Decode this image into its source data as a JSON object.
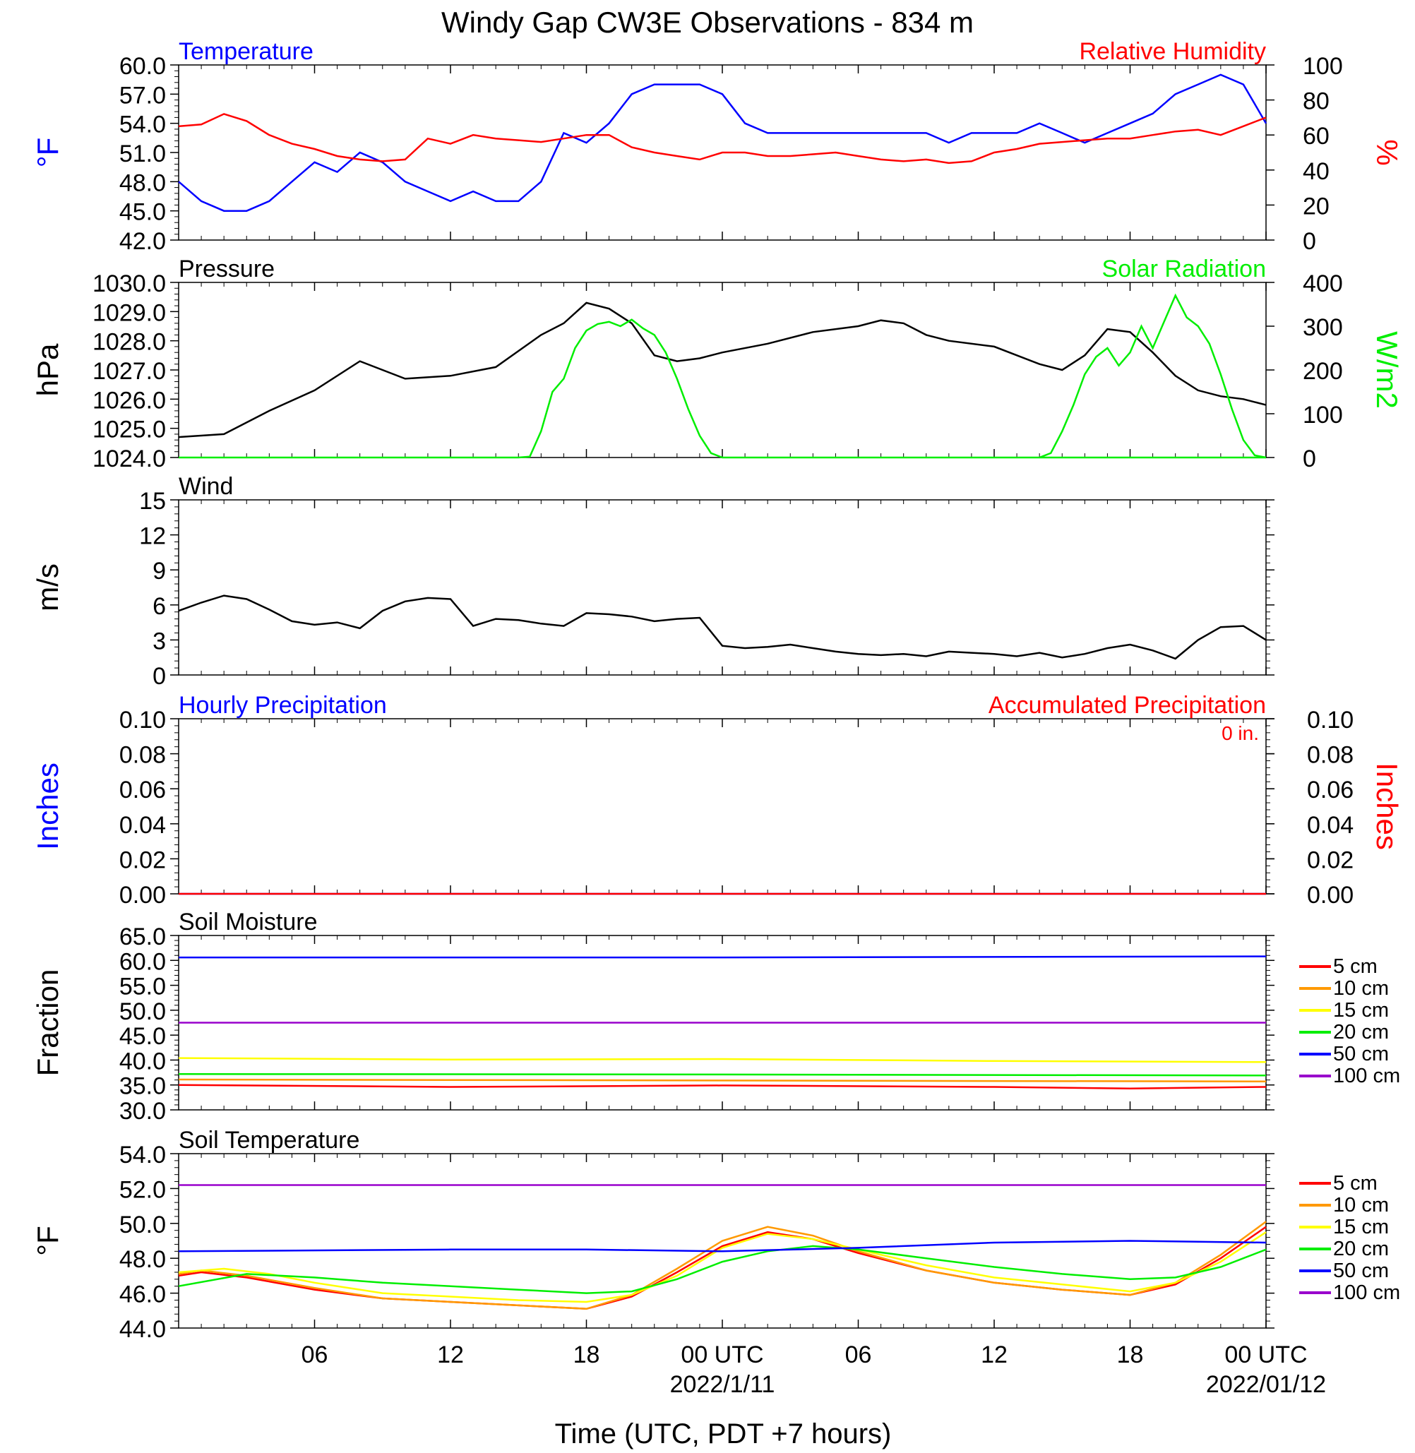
{
  "page": {
    "title": "Windy Gap CW3E Observations - 834 m",
    "xlabel": "Time (UTC, PDT +7 hours)",
    "x_ticks": [
      {
        "hour": 6,
        "label": "06"
      },
      {
        "hour": 12,
        "label": "12"
      },
      {
        "hour": 18,
        "label": "18"
      },
      {
        "hour": 24,
        "label": "00 UTC",
        "sublabel": "2022/1/11"
      },
      {
        "hour": 30,
        "label": "06"
      },
      {
        "hour": 36,
        "label": "12"
      },
      {
        "hour": 42,
        "label": "18"
      },
      {
        "hour": 48,
        "label": "00 UTC",
        "sublabel": "2022/01/12"
      }
    ]
  },
  "colors": {
    "blue": "#0000ff",
    "red": "#ff0000",
    "green": "#00ee00",
    "black": "#000000",
    "orange": "#ff9900",
    "yellow": "#ffff00",
    "purple": "#9900cc"
  },
  "chart_data": [
    {
      "id": "temperature",
      "type": "line",
      "title_left": "Temperature",
      "title_right": "Relative Humidity",
      "ylabel": "°F",
      "ylabel_right": "%",
      "ylim": [
        42,
        60
      ],
      "ylim_right": [
        0,
        100
      ],
      "yticks": [
        "42.0",
        "45.0",
        "48.0",
        "51.0",
        "54.0",
        "57.0",
        "60.0"
      ],
      "yticks_right": [
        "0",
        "20",
        "40",
        "60",
        "80",
        "100"
      ],
      "series": [
        {
          "name": "Temperature",
          "color": "#0000ff",
          "axis": "left",
          "x": [
            0,
            1,
            2,
            3,
            4,
            5,
            6,
            7,
            8,
            9,
            10,
            11,
            12,
            13,
            14,
            15,
            16,
            17,
            18,
            19,
            20,
            21,
            22,
            23,
            24,
            25,
            26,
            27,
            28,
            29,
            30,
            31,
            32,
            33,
            34,
            35,
            36,
            37,
            38,
            39,
            40,
            41,
            42,
            43,
            44,
            45,
            46,
            47,
            48
          ],
          "y": [
            48,
            46,
            45,
            45,
            46,
            48,
            50,
            49,
            51,
            50,
            48,
            47,
            46,
            47,
            46,
            46,
            48,
            53,
            52,
            54,
            57,
            58,
            58,
            58,
            57,
            54,
            53,
            53,
            53,
            53,
            53,
            53,
            53,
            53,
            52,
            53,
            53,
            53,
            54,
            53,
            52,
            53,
            54,
            55,
            57,
            58,
            59,
            58,
            54
          ]
        },
        {
          "name": "Relative Humidity",
          "color": "#ff0000",
          "axis": "right",
          "x": [
            0,
            1,
            2,
            3,
            4,
            5,
            6,
            7,
            8,
            9,
            10,
            11,
            12,
            13,
            14,
            15,
            16,
            17,
            18,
            19,
            20,
            21,
            22,
            23,
            24,
            25,
            26,
            27,
            28,
            29,
            30,
            31,
            32,
            33,
            34,
            35,
            36,
            37,
            38,
            39,
            40,
            41,
            42,
            43,
            44,
            45,
            46,
            47,
            48
          ],
          "y": [
            65,
            66,
            72,
            68,
            60,
            55,
            52,
            48,
            46,
            45,
            46,
            58,
            55,
            60,
            58,
            57,
            56,
            58,
            60,
            60,
            53,
            50,
            48,
            46,
            50,
            50,
            48,
            48,
            49,
            50,
            48,
            46,
            45,
            46,
            44,
            45,
            50,
            52,
            55,
            56,
            57,
            58,
            58,
            60,
            62,
            63,
            60,
            65,
            70
          ]
        }
      ]
    },
    {
      "id": "pressure",
      "type": "line",
      "title_left": "Pressure",
      "title_right": "Solar Radiation",
      "ylabel": "hPa",
      "ylabel_right": "W/m2",
      "ylim": [
        1024,
        1030
      ],
      "ylim_right": [
        0,
        400
      ],
      "yticks": [
        "1024.0",
        "1025.0",
        "1026.0",
        "1027.0",
        "1028.0",
        "1029.0",
        "1030.0"
      ],
      "yticks_right": [
        "0",
        "100",
        "200",
        "300",
        "400"
      ],
      "series": [
        {
          "name": "Pressure",
          "color": "#000000",
          "axis": "left",
          "x": [
            0,
            2,
            4,
            6,
            8,
            10,
            12,
            14,
            16,
            17,
            18,
            19,
            20,
            21,
            22,
            23,
            24,
            26,
            28,
            30,
            31,
            32,
            33,
            34,
            36,
            38,
            39,
            40,
            41,
            42,
            43,
            44,
            45,
            46,
            47,
            48
          ],
          "y": [
            1024.7,
            1024.8,
            1025.6,
            1026.3,
            1027.3,
            1026.7,
            1026.8,
            1027.1,
            1028.2,
            1028.6,
            1029.3,
            1029.1,
            1028.6,
            1027.5,
            1027.3,
            1027.4,
            1027.6,
            1027.9,
            1028.3,
            1028.5,
            1028.7,
            1028.6,
            1028.2,
            1028.0,
            1027.8,
            1027.2,
            1027.0,
            1027.5,
            1028.4,
            1028.3,
            1027.6,
            1026.8,
            1026.3,
            1026.1,
            1026.0,
            1025.8
          ]
        },
        {
          "name": "Solar Radiation",
          "color": "#00ee00",
          "axis": "right",
          "x": [
            0,
            15,
            15.5,
            16,
            16.5,
            17,
            17.5,
            18,
            18.5,
            19,
            19.5,
            20,
            20.5,
            21,
            21.5,
            22,
            22.5,
            23,
            23.5,
            24,
            48
          ],
          "y": [
            0,
            0,
            2,
            60,
            150,
            180,
            250,
            290,
            305,
            310,
            300,
            315,
            295,
            280,
            240,
            180,
            110,
            50,
            10,
            0,
            0
          ]
        },
        {
          "name": "Solar Radiation (day 2)",
          "color": "#00ee00",
          "axis": "right",
          "x": [
            38,
            38.5,
            39,
            39.5,
            40,
            40.5,
            41,
            41.5,
            42,
            42.5,
            43,
            43.5,
            44,
            44.5,
            45,
            45.5,
            46,
            46.5,
            47,
            47.5,
            48
          ],
          "y": [
            0,
            10,
            60,
            120,
            190,
            230,
            250,
            210,
            240,
            300,
            250,
            310,
            370,
            320,
            300,
            260,
            190,
            110,
            40,
            5,
            0
          ]
        }
      ]
    },
    {
      "id": "wind",
      "type": "line",
      "title_left": "Wind",
      "ylabel": "m/s",
      "ylim": [
        0,
        15
      ],
      "yticks": [
        "0",
        "3",
        "6",
        "9",
        "12",
        "15"
      ],
      "series": [
        {
          "name": "Wind",
          "color": "#000000",
          "axis": "left",
          "x": [
            0,
            1,
            2,
            3,
            4,
            5,
            6,
            7,
            8,
            9,
            10,
            11,
            12,
            13,
            14,
            15,
            16,
            17,
            18,
            19,
            20,
            21,
            22,
            23,
            24,
            25,
            26,
            27,
            28,
            29,
            30,
            31,
            32,
            33,
            34,
            35,
            36,
            37,
            38,
            39,
            40,
            41,
            42,
            43,
            44,
            45,
            46,
            47,
            48
          ],
          "y": [
            5.5,
            6.2,
            6.8,
            6.5,
            5.6,
            4.6,
            4.3,
            4.5,
            4.0,
            5.5,
            6.3,
            6.6,
            6.5,
            4.2,
            4.8,
            4.7,
            4.4,
            4.2,
            5.3,
            5.2,
            5.0,
            4.6,
            4.8,
            4.9,
            2.5,
            2.3,
            2.4,
            2.6,
            2.3,
            2.0,
            1.8,
            1.7,
            1.8,
            1.6,
            2.0,
            1.9,
            1.8,
            1.6,
            1.9,
            1.5,
            1.8,
            2.3,
            2.6,
            2.1,
            1.4,
            3.0,
            4.1,
            4.2,
            3.0
          ]
        }
      ]
    },
    {
      "id": "precipitation",
      "type": "line",
      "title_left": "Hourly Precipitation",
      "title_right": "Accumulated Precipitation",
      "annotation": "0 in.",
      "ylabel": "Inches",
      "ylabel_right": "Inches",
      "ylim": [
        0,
        0.1
      ],
      "yticks": [
        "0.00",
        "0.02",
        "0.04",
        "0.06",
        "0.08",
        "0.10"
      ],
      "series": [
        {
          "name": "Hourly Precipitation",
          "color": "#0000ff",
          "axis": "left",
          "x": [
            0,
            48
          ],
          "y": [
            0,
            0
          ]
        },
        {
          "name": "Accumulated Precipitation",
          "color": "#ff0000",
          "axis": "right",
          "x": [
            0,
            48
          ],
          "y": [
            0,
            0
          ]
        }
      ]
    },
    {
      "id": "soil_moisture",
      "type": "line",
      "title_left": "Soil Moisture",
      "ylabel": "Fraction",
      "ylim": [
        30,
        65
      ],
      "yticks": [
        "30.0",
        "35.0",
        "40.0",
        "45.0",
        "50.0",
        "55.0",
        "60.0",
        "65.0"
      ],
      "series": [
        {
          "name": "5 cm",
          "color": "#ff0000",
          "x": [
            0,
            12,
            24,
            36,
            42,
            48
          ],
          "y": [
            35.0,
            34.6,
            34.9,
            34.6,
            34.3,
            34.6
          ]
        },
        {
          "name": "10 cm",
          "color": "#ff9900",
          "x": [
            0,
            24,
            48
          ],
          "y": [
            36.1,
            35.9,
            35.7
          ]
        },
        {
          "name": "15 cm",
          "color": "#ffff00",
          "x": [
            0,
            12,
            24,
            36,
            48
          ],
          "y": [
            40.4,
            40.1,
            40.2,
            39.8,
            39.6
          ]
        },
        {
          "name": "20 cm",
          "color": "#00ee00",
          "x": [
            0,
            24,
            48
          ],
          "y": [
            37.2,
            37.1,
            36.9
          ]
        },
        {
          "name": "50 cm",
          "color": "#0000ff",
          "x": [
            0,
            24,
            48
          ],
          "y": [
            60.6,
            60.6,
            60.8
          ]
        },
        {
          "name": "100 cm",
          "color": "#9900cc",
          "x": [
            0,
            24,
            48
          ],
          "y": [
            47.5,
            47.5,
            47.5
          ]
        }
      ]
    },
    {
      "id": "soil_temperature",
      "type": "line",
      "title_left": "Soil Temperature",
      "ylabel": "°F",
      "ylim": [
        44,
        54
      ],
      "yticks": [
        "44.0",
        "46.0",
        "48.0",
        "50.0",
        "52.0",
        "54.0"
      ],
      "series": [
        {
          "name": "5 cm",
          "color": "#ff0000",
          "x": [
            0,
            1,
            3,
            6,
            9,
            12,
            15,
            18,
            20,
            22,
            24,
            26,
            28,
            30,
            33,
            36,
            39,
            42,
            44,
            46,
            48
          ],
          "y": [
            47.0,
            47.2,
            46.9,
            46.2,
            45.7,
            45.5,
            45.3,
            45.1,
            45.8,
            47.2,
            48.7,
            49.5,
            49.1,
            48.3,
            47.3,
            46.6,
            46.2,
            45.9,
            46.5,
            48.0,
            49.8
          ]
        },
        {
          "name": "10 cm",
          "color": "#ff9900",
          "x": [
            0,
            1,
            3,
            6,
            9,
            12,
            15,
            18,
            20,
            22,
            24,
            26,
            28,
            30,
            33,
            36,
            39,
            42,
            44,
            46,
            48
          ],
          "y": [
            47.1,
            47.3,
            47.0,
            46.3,
            45.7,
            45.5,
            45.3,
            45.1,
            45.9,
            47.4,
            49.0,
            49.8,
            49.3,
            48.4,
            47.3,
            46.6,
            46.2,
            45.9,
            46.6,
            48.2,
            50.1
          ]
        },
        {
          "name": "15 cm",
          "color": "#ffff00",
          "x": [
            0,
            2,
            4,
            6,
            9,
            12,
            15,
            18,
            20,
            22,
            24,
            26,
            28,
            30,
            33,
            36,
            39,
            42,
            44,
            46,
            48
          ],
          "y": [
            47.2,
            47.4,
            47.1,
            46.6,
            46.0,
            45.8,
            45.6,
            45.5,
            45.9,
            47.0,
            48.6,
            49.4,
            49.1,
            48.5,
            47.6,
            46.9,
            46.5,
            46.1,
            46.6,
            47.8,
            49.5
          ]
        },
        {
          "name": "20 cm",
          "color": "#00ee00",
          "x": [
            0,
            3,
            6,
            9,
            12,
            15,
            18,
            20,
            22,
            24,
            26,
            28,
            30,
            33,
            36,
            39,
            42,
            44,
            46,
            48
          ],
          "y": [
            46.4,
            47.1,
            46.9,
            46.6,
            46.4,
            46.2,
            46.0,
            46.1,
            46.8,
            47.8,
            48.4,
            48.7,
            48.5,
            48.0,
            47.5,
            47.1,
            46.8,
            46.9,
            47.5,
            48.5
          ]
        },
        {
          "name": "50 cm",
          "color": "#0000ff",
          "x": [
            0,
            12,
            18,
            24,
            30,
            36,
            42,
            48
          ],
          "y": [
            48.4,
            48.5,
            48.5,
            48.4,
            48.6,
            48.9,
            49.0,
            48.9
          ]
        },
        {
          "name": "100 cm",
          "color": "#9900cc",
          "x": [
            0,
            24,
            48
          ],
          "y": [
            52.2,
            52.2,
            52.2
          ]
        }
      ]
    }
  ]
}
